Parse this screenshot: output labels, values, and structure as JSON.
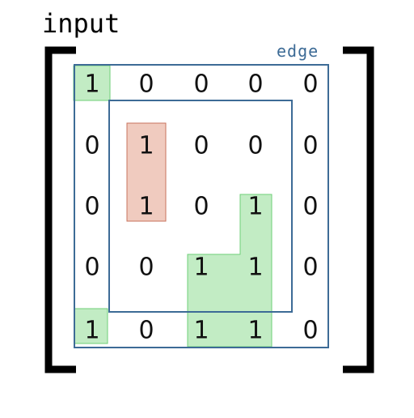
{
  "title": "input",
  "edge_label": "edge",
  "matrix": [
    [
      "1",
      "0",
      "0",
      "0",
      "0"
    ],
    [
      "0",
      "1",
      "0",
      "0",
      "0"
    ],
    [
      "0",
      "1",
      "0",
      "1",
      "0"
    ],
    [
      "0",
      "0",
      "1",
      "1",
      "0"
    ],
    [
      "1",
      "0",
      "1",
      "1",
      "0"
    ]
  ],
  "colors": {
    "bracket": "#000000",
    "frame": "#3d6b96",
    "green_fill": "#c2ecc4",
    "green_stroke": "#6fcf78",
    "red_fill": "#f0cbbf",
    "red_stroke": "#c8735c"
  }
}
